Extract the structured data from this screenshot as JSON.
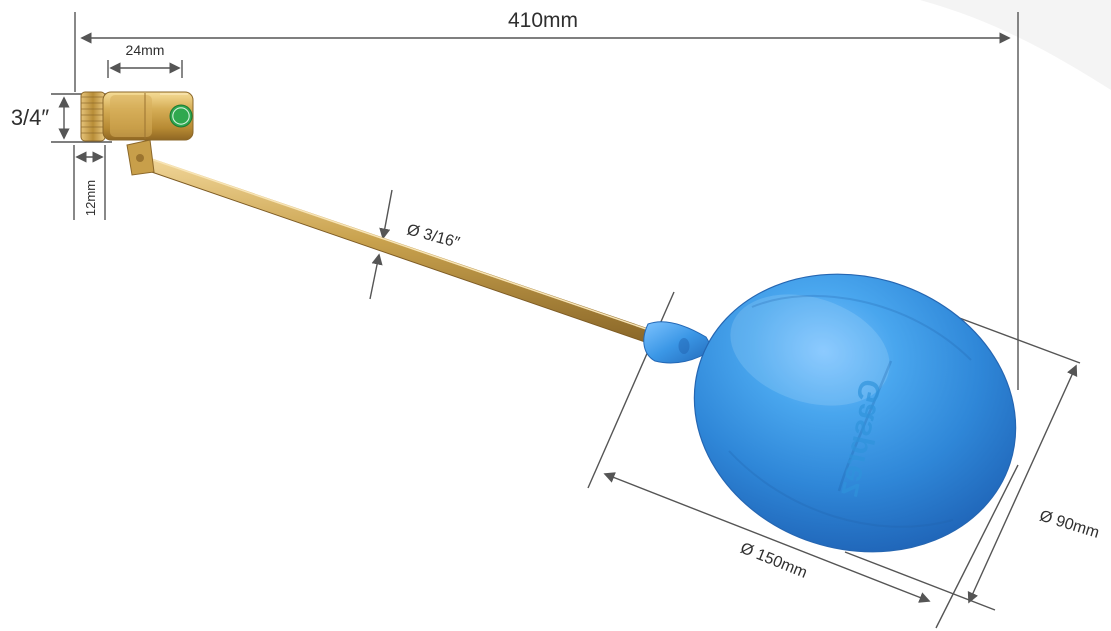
{
  "product_photo": {
    "dimensions": {
      "total_length": "410mm",
      "fitting_length": "24mm",
      "thread_size": "3/4″",
      "fitting_offset": "12mm",
      "rod_diameter": "Ø 3/16″",
      "float_length": "Ø 150mm",
      "float_diameter": "Ø 90mm"
    },
    "brand": {
      "float_embossing": "Gasprez",
      "fitting_logo_mark": "G"
    },
    "colors": {
      "float_blue": "#3d9ae6",
      "brass": "#c9a24e",
      "logo_green": "#2fa84f",
      "dimension_line": "#555555"
    }
  }
}
